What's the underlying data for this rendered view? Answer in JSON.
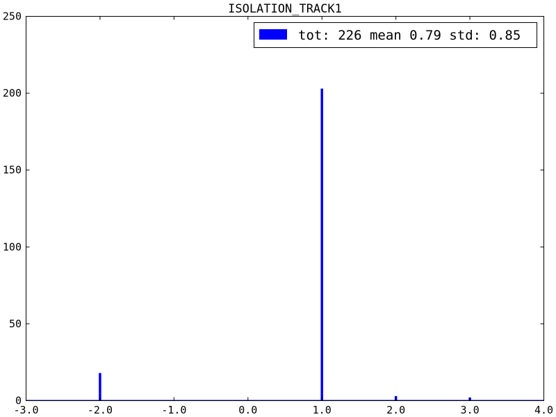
{
  "chart_data": {
    "type": "bar",
    "title": "ISOLATION_TRACK1",
    "xlabel": "",
    "ylabel": "",
    "xlim": [
      -3.0,
      4.0
    ],
    "ylim": [
      0,
      250
    ],
    "x_ticks": [
      "-3.0",
      "-2.0",
      "-1.0",
      "0.0",
      "1.0",
      "2.0",
      "3.0",
      "4.0"
    ],
    "y_ticks": [
      "0",
      "50",
      "100",
      "150",
      "200",
      "250"
    ],
    "grid": false,
    "legend_position": "top-right",
    "series": [
      {
        "name": "tot: 226 mean 0.79 std: 0.85",
        "color": "#0000ff",
        "bins": [
          {
            "x": -2.0,
            "value": 18
          },
          {
            "x": 1.0,
            "value": 203
          },
          {
            "x": 2.0,
            "value": 3
          },
          {
            "x": 3.0,
            "value": 2
          }
        ]
      }
    ]
  }
}
